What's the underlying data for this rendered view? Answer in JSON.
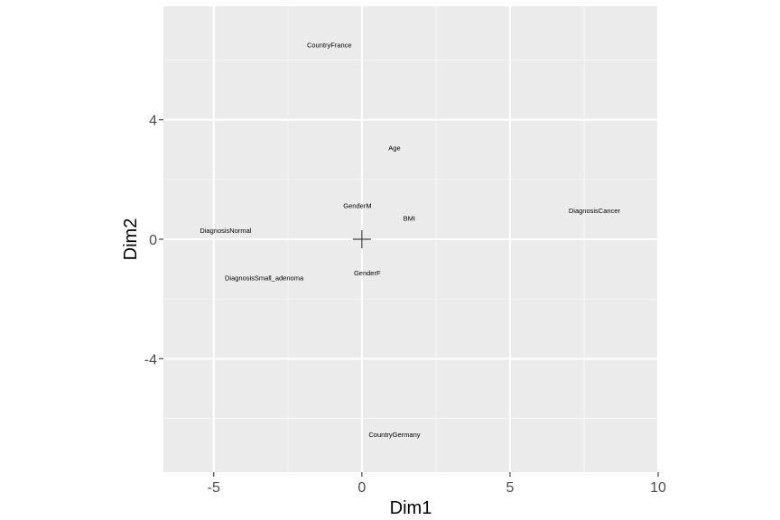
{
  "chart_data": {
    "type": "scatter",
    "title": "",
    "xlabel": "Dim1",
    "ylabel": "Dim2",
    "xlim": [
      -6.7,
      10
    ],
    "ylim": [
      -7.8,
      7.8
    ],
    "x_ticks": [
      -5,
      0,
      5,
      10
    ],
    "x_minor_ticks": [
      -2.5,
      2.5,
      7.5
    ],
    "y_ticks": [
      -4,
      0,
      4
    ],
    "y_minor_ticks": [
      -6,
      -2,
      2,
      6
    ],
    "grid": true,
    "origin_marker": {
      "x": 0,
      "y": 0
    },
    "points": [
      {
        "label": "CountryFrance",
        "x": -1.1,
        "y": 6.5
      },
      {
        "label": "Age",
        "x": 1.1,
        "y": 3.05
      },
      {
        "label": "GenderM",
        "x": -0.15,
        "y": 1.12
      },
      {
        "label": "BMI",
        "x": 1.6,
        "y": 0.7
      },
      {
        "label": "DiagnosisCancer",
        "x": 7.85,
        "y": 0.95
      },
      {
        "label": "DiagnosisNormal",
        "x": -4.6,
        "y": 0.28
      },
      {
        "label": "GenderF",
        "x": 0.18,
        "y": -1.13
      },
      {
        "label": "DiagnosisSmall_adenoma",
        "x": -3.3,
        "y": -1.3
      },
      {
        "label": "CountryGermany",
        "x": 1.1,
        "y": -6.55
      }
    ]
  }
}
